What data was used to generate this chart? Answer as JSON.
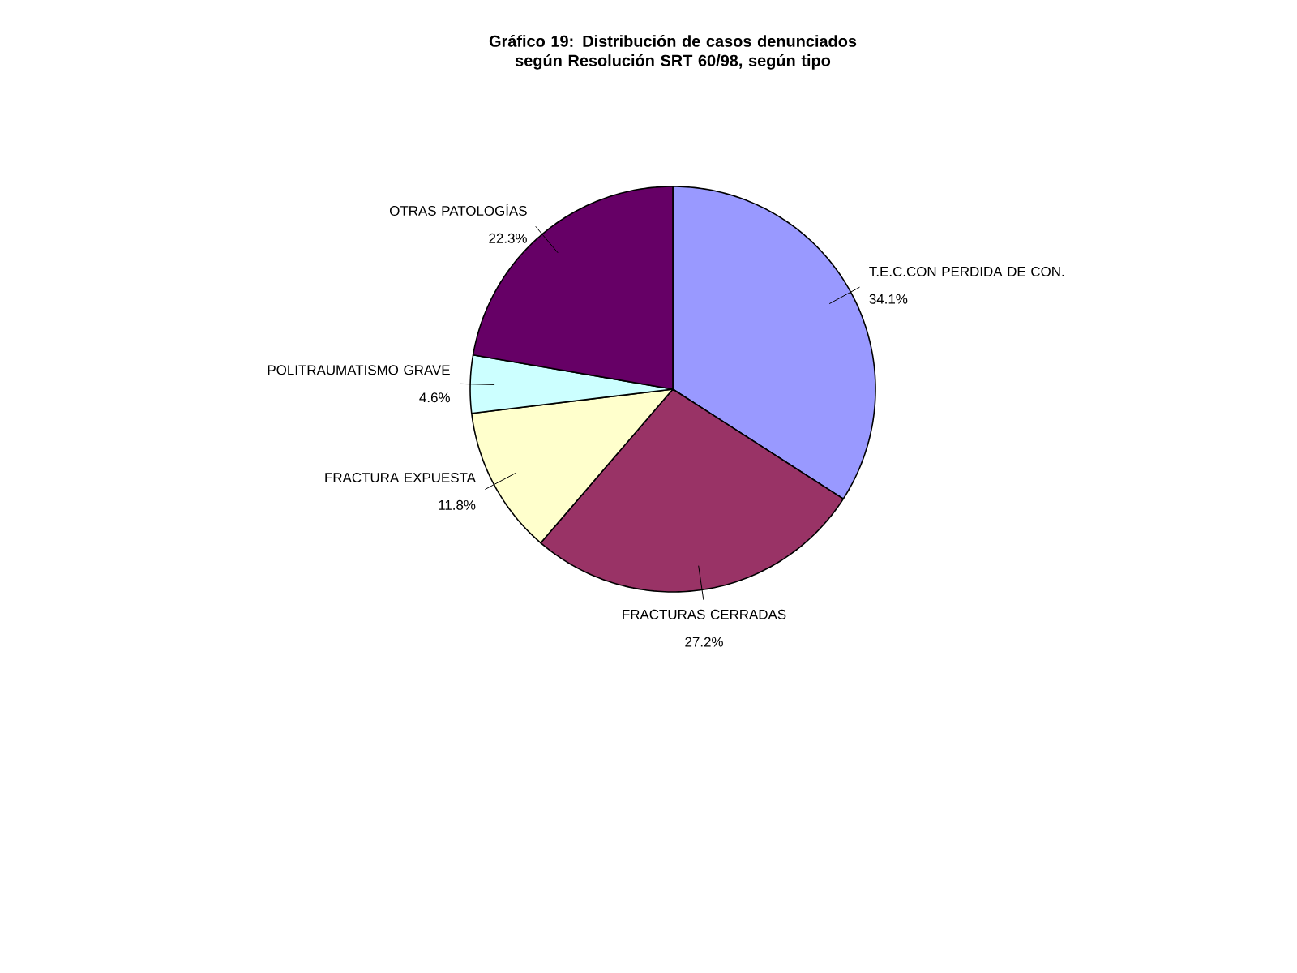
{
  "chart_data": {
    "type": "pie",
    "title": "Gráfico 19: Distribución de casos denunciados\nsegún Resolución SRT 60/98, según tipo",
    "categories": [
      "T.E.C.CON PERDIDA DE CON.",
      "FRACTURAS CERRADAS",
      "FRACTURA EXPUESTA",
      "POLITRAUMATISMO GRAVE",
      "OTRAS PATOLOGÍAS"
    ],
    "values": [
      34.1,
      27.2,
      11.8,
      4.6,
      22.3
    ],
    "value_labels": [
      "34.1%",
      "27.2%",
      "11.8%",
      "4.6%",
      "22.3%"
    ],
    "colors": [
      "#9999ff",
      "#993366",
      "#ffffcc",
      "#ccffff",
      "#660066"
    ]
  }
}
